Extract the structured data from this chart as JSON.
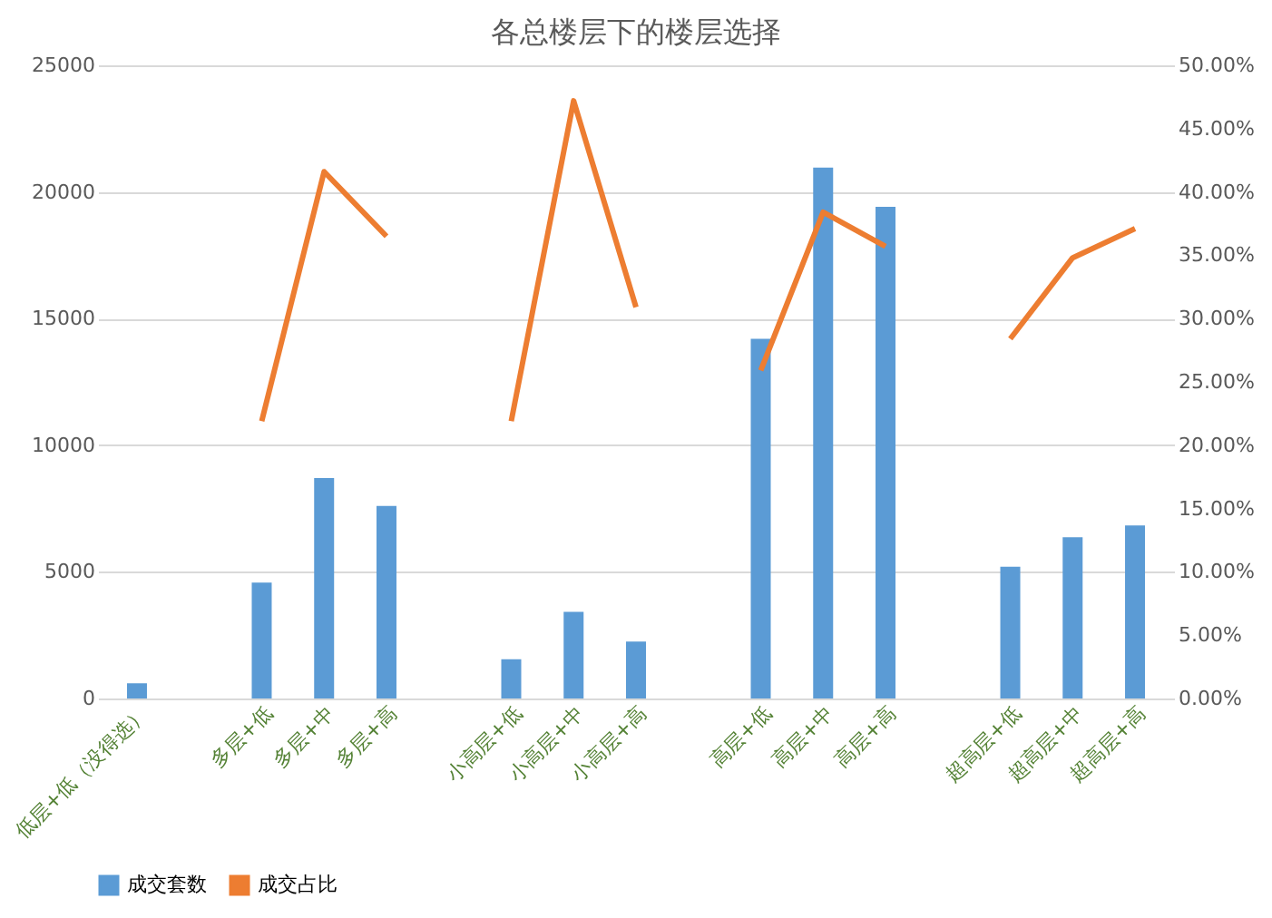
{
  "chart_data": {
    "type": "bar",
    "title": "各总楼层下的楼层选择",
    "categories": [
      "低层+低（没得选）",
      null,
      "多层+低",
      "多层+中",
      "多层+高",
      null,
      "小高层+低",
      "小高层+中",
      "小高层+高",
      null,
      "高层+低",
      "高层+中",
      "高层+高",
      null,
      "超高层+低",
      "超高层+中",
      "超高层+高"
    ],
    "series": [
      {
        "name": "成交套数",
        "color": "#5b9bd5",
        "values": [
          600,
          null,
          4580,
          8700,
          7600,
          null,
          1550,
          3420,
          2250,
          null,
          14200,
          20960,
          19410,
          null,
          5200,
          6370,
          6830
        ]
      },
      {
        "name": "成交占比",
        "type": "line",
        "axis": "y2",
        "color": "#ed7d31",
        "values": [
          null,
          null,
          21.9,
          41.6,
          36.5,
          null,
          21.9,
          47.2,
          30.9,
          null,
          25.9,
          38.4,
          35.7,
          null,
          28.4,
          34.8,
          37.1
        ]
      }
    ],
    "ylim": [
      0,
      25000
    ],
    "yticks": [
      0,
      5000,
      10000,
      15000,
      20000,
      25000
    ],
    "y2lim": [
      0,
      50
    ],
    "y2ticks": [
      {
        "value": 0,
        "label": "0.00%"
      },
      {
        "value": 5,
        "label": "5.00%"
      },
      {
        "value": 10,
        "label": "10.00%"
      },
      {
        "value": 15,
        "label": "15.00%"
      },
      {
        "value": 20,
        "label": "20.00%"
      },
      {
        "value": 25,
        "label": "25.00%"
      },
      {
        "value": 30,
        "label": "30.00%"
      },
      {
        "value": 35,
        "label": "35.00%"
      },
      {
        "value": 40,
        "label": "40.00%"
      },
      {
        "value": 45,
        "label": "45.00%"
      },
      {
        "value": 50,
        "label": "50.00%"
      }
    ],
    "grid": "y",
    "legend": "bottom",
    "marker": "none",
    "line_style": "solid"
  }
}
